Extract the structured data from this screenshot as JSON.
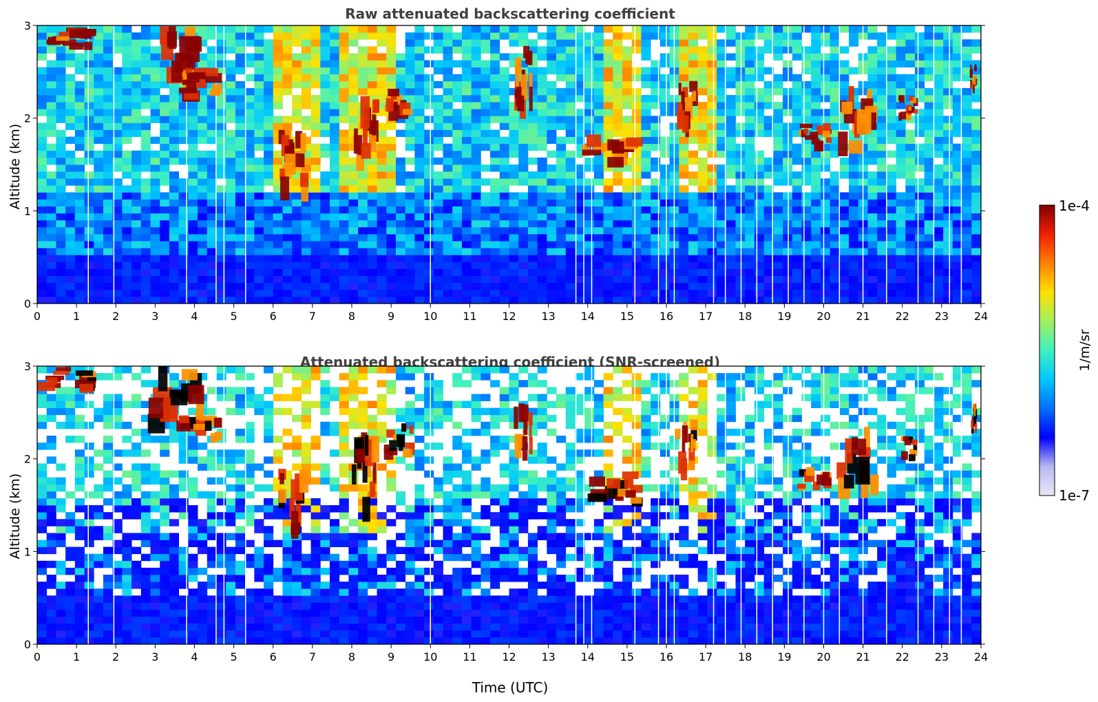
{
  "chart_data": [
    {
      "type": "heatmap",
      "title": "Raw attenuated backscattering coefficient",
      "xlabel": "",
      "ylabel": "Altitude (km)",
      "xlim": [
        0,
        24
      ],
      "ylim": [
        0,
        3
      ],
      "x_ticks": [
        "0",
        "1",
        "2",
        "3",
        "4",
        "5",
        "6",
        "7",
        "8",
        "9",
        "10",
        "11",
        "12",
        "13",
        "14",
        "15",
        "16",
        "17",
        "18",
        "19",
        "20",
        "21",
        "22",
        "23",
        "24"
      ],
      "y_ticks": [
        "0",
        "1",
        "2",
        "3"
      ],
      "color_scale": "log",
      "clim": [
        1e-07,
        0.0001
      ],
      "screened": false,
      "cloud_layers": [
        {
          "t0": 0.0,
          "t1": 1.5,
          "z0": 2.75,
          "z1": 3.0
        },
        {
          "t0": 2.8,
          "t1": 4.3,
          "z0": 2.3,
          "z1": 3.0
        },
        {
          "t0": 3.4,
          "t1": 4.7,
          "z0": 2.2,
          "z1": 2.55
        },
        {
          "t0": 6.1,
          "t1": 6.9,
          "z0": 1.15,
          "z1": 1.9
        },
        {
          "t0": 8.0,
          "t1": 8.7,
          "z0": 1.4,
          "z1": 2.3
        },
        {
          "t0": 8.8,
          "t1": 9.6,
          "z0": 2.0,
          "z1": 2.4
        },
        {
          "t0": 12.1,
          "t1": 12.6,
          "z0": 2.05,
          "z1": 2.8
        },
        {
          "t0": 13.8,
          "t1": 15.4,
          "z0": 1.5,
          "z1": 1.9
        },
        {
          "t0": 16.2,
          "t1": 16.8,
          "z0": 1.85,
          "z1": 2.45
        },
        {
          "t0": 19.3,
          "t1": 20.2,
          "z0": 1.65,
          "z1": 1.95
        },
        {
          "t0": 20.3,
          "t1": 21.4,
          "z0": 1.6,
          "z1": 2.35
        },
        {
          "t0": 21.9,
          "t1": 22.4,
          "z0": 2.0,
          "z1": 2.25
        },
        {
          "t0": 23.7,
          "t1": 23.9,
          "z0": 2.3,
          "z1": 2.6
        }
      ]
    },
    {
      "type": "heatmap",
      "title": "Attenuated backscattering coefficient (SNR-screened)",
      "xlabel": "Time (UTC)",
      "ylabel": "Altitude (km)",
      "xlim": [
        0,
        24
      ],
      "ylim": [
        0,
        3
      ],
      "x_ticks": [
        "0",
        "1",
        "2",
        "3",
        "4",
        "5",
        "6",
        "7",
        "8",
        "9",
        "10",
        "11",
        "12",
        "13",
        "14",
        "15",
        "16",
        "17",
        "18",
        "19",
        "20",
        "21",
        "22",
        "23",
        "24"
      ],
      "y_ticks": [
        "0",
        "1",
        "2",
        "3"
      ],
      "color_scale": "log",
      "clim": [
        1e-07,
        0.0001
      ],
      "screened": true,
      "cloud_layers": [
        {
          "t0": 0.0,
          "t1": 1.5,
          "z0": 2.75,
          "z1": 3.0
        },
        {
          "t0": 2.8,
          "t1": 4.3,
          "z0": 2.3,
          "z1": 3.0
        },
        {
          "t0": 3.4,
          "t1": 4.7,
          "z0": 2.2,
          "z1": 2.55
        },
        {
          "t0": 6.1,
          "t1": 6.9,
          "z0": 1.15,
          "z1": 1.9
        },
        {
          "t0": 8.0,
          "t1": 8.7,
          "z0": 1.4,
          "z1": 2.3
        },
        {
          "t0": 8.8,
          "t1": 9.6,
          "z0": 2.0,
          "z1": 2.4
        },
        {
          "t0": 12.1,
          "t1": 12.6,
          "z0": 2.05,
          "z1": 2.8
        },
        {
          "t0": 13.8,
          "t1": 15.4,
          "z0": 1.5,
          "z1": 1.9
        },
        {
          "t0": 16.2,
          "t1": 16.8,
          "z0": 1.85,
          "z1": 2.45
        },
        {
          "t0": 19.3,
          "t1": 20.2,
          "z0": 1.65,
          "z1": 1.95
        },
        {
          "t0": 20.3,
          "t1": 21.4,
          "z0": 1.6,
          "z1": 2.35
        },
        {
          "t0": 21.9,
          "t1": 22.4,
          "z0": 2.0,
          "z1": 2.25
        },
        {
          "t0": 23.7,
          "t1": 23.9,
          "z0": 2.3,
          "z1": 2.6
        }
      ]
    }
  ],
  "colorbar": {
    "label": "1/m/sr",
    "max_label": "1e-4",
    "min_label": "1e-7",
    "colormap": [
      "#e8e8f8",
      "#b8b8f0",
      "#0000ff",
      "#0070ff",
      "#00c8ff",
      "#40f0c0",
      "#a0f060",
      "#ffe000",
      "#ff8000",
      "#f02000",
      "#800000"
    ]
  }
}
